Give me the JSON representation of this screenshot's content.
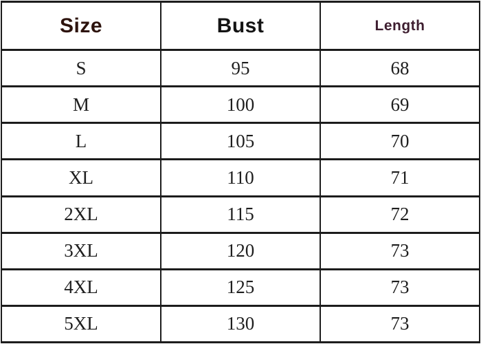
{
  "chart_data": {
    "type": "table",
    "columns": [
      "Size",
      "Bust",
      "Length"
    ],
    "rows": [
      [
        "S",
        "95",
        "68"
      ],
      [
        "M",
        "100",
        "69"
      ],
      [
        "L",
        "105",
        "70"
      ],
      [
        "XL",
        "110",
        "71"
      ],
      [
        "2XL",
        "115",
        "72"
      ],
      [
        "3XL",
        "120",
        "73"
      ],
      [
        "4XL",
        "125",
        "73"
      ],
      [
        "5XL",
        "130",
        "73"
      ]
    ]
  },
  "colors": {
    "size_header_text": "#2d130d",
    "bust_header_text": "#141414",
    "length_header_text": "#3e1e30",
    "body_text": "#1e1e1e",
    "grid_border": "#1c1c1c",
    "background": "#ffffff"
  }
}
